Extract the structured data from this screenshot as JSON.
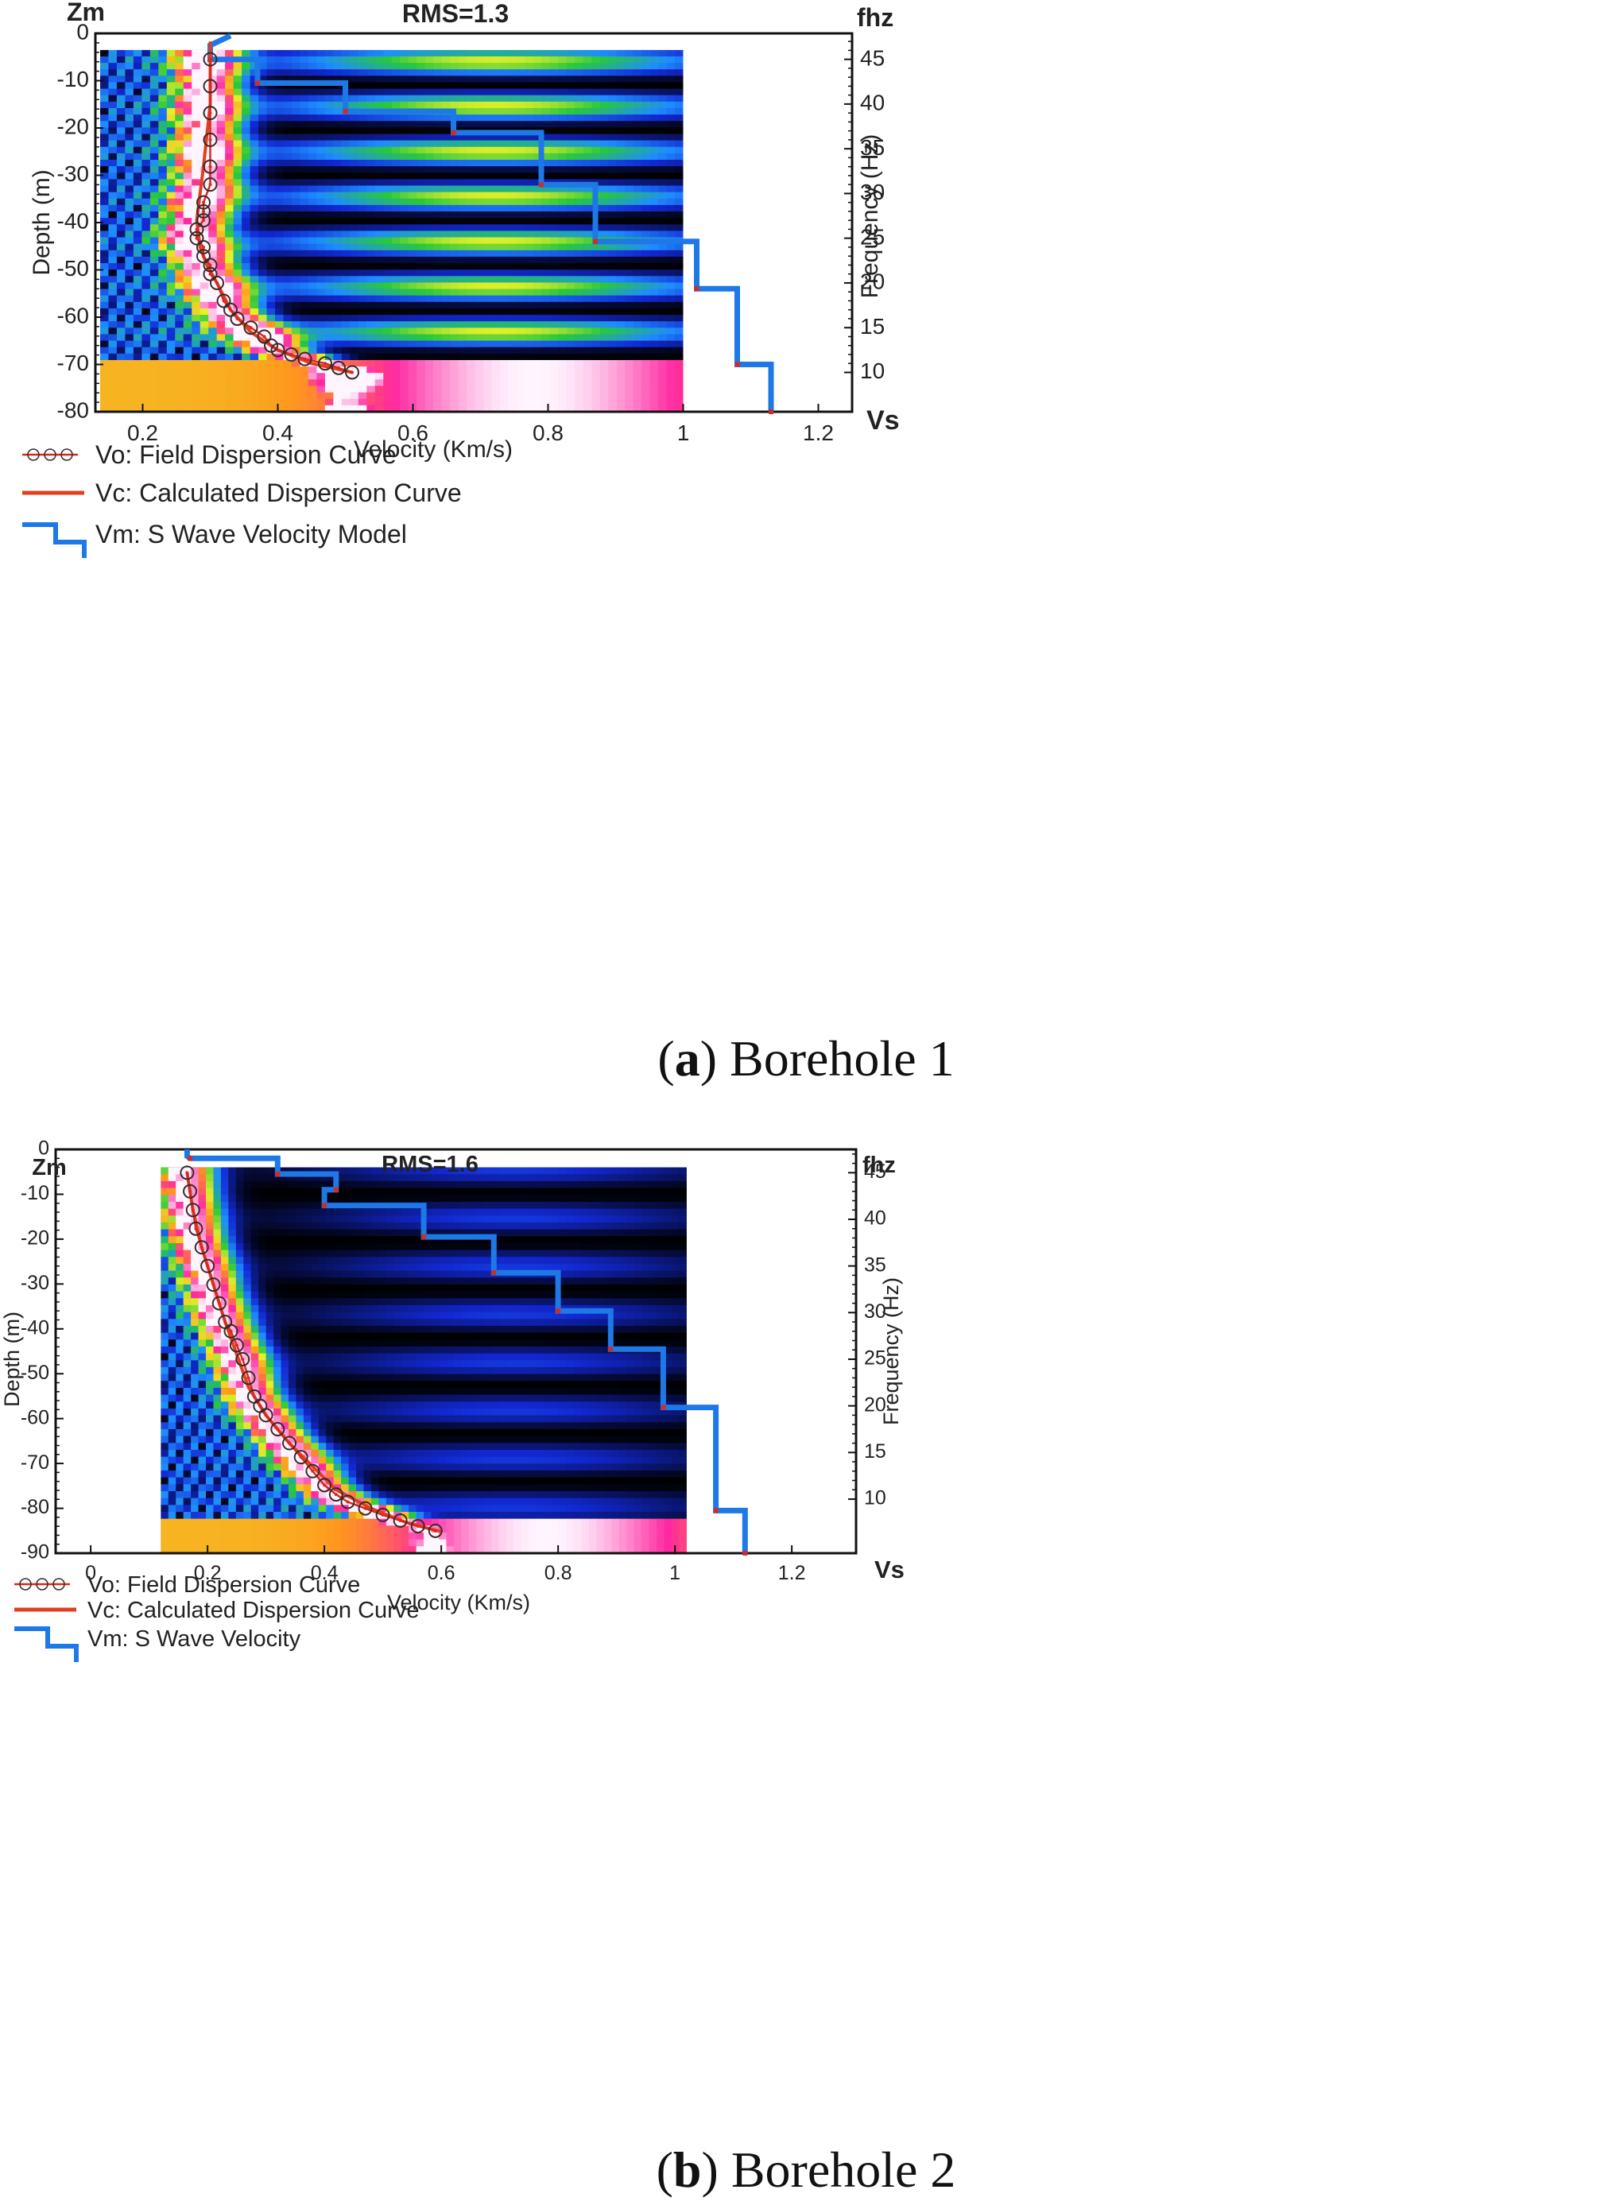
{
  "charts": [
    {
      "id": "a",
      "title": "RMS=1.3",
      "left_axis_unit": "Zm",
      "right_axis_unit": "fhz",
      "x_axis_unit": "Vs",
      "ylabel_left": "Depth (m)",
      "ylabel_right": "Frequency (Hz)",
      "xlabel": "Velocity (Km/s)",
      "caption_letter": "a",
      "caption_text": "Borehole 1",
      "legend": [
        {
          "key": "vo",
          "label": "Vo: Field Dispersion Curve"
        },
        {
          "key": "vc",
          "label": "Vc: Calculated Dispersion Curve"
        },
        {
          "key": "vm",
          "label": "Vm: S Wave Velocity Model"
        }
      ]
    },
    {
      "id": "b",
      "title": "RMS=1.6",
      "left_axis_unit": "Zm",
      "right_axis_unit": "fhz",
      "x_axis_unit": "Vs",
      "ylabel_left": "Depth (m)",
      "ylabel_right": "Frequency (Hz)",
      "xlabel": "Velocity (Km/s)",
      "caption_letter": "b",
      "caption_text": "Borehole 2",
      "legend": [
        {
          "key": "vo",
          "label": "Vo: Field Dispersion Curve"
        },
        {
          "key": "vc",
          "label": "Vc: Calculated Dispersion Curve"
        },
        {
          "key": "vm",
          "label": "Vm: S Wave Velocity"
        }
      ]
    }
  ],
  "colors": {
    "field_curve": "#d62a1e",
    "calc_curve": "#e0401f",
    "model": "#1e78e6",
    "marker": "#3a2a2a"
  },
  "chart_data": [
    {
      "type": "line",
      "title": "RMS=1.3",
      "xlabel": "Velocity (Km/s)",
      "ylabel": "Depth (m)",
      "ylabel_right": "Frequency (Hz)",
      "xlim": [
        0.13,
        1.25
      ],
      "ylim": [
        -80,
        0
      ],
      "freq_lim": [
        5.6,
        47.9
      ],
      "x_ticks": [
        0.2,
        0.4,
        0.6,
        0.8,
        1,
        1.2
      ],
      "y_ticks": [
        0,
        -10,
        -20,
        -30,
        -40,
        -50,
        -60,
        -70,
        -80
      ],
      "freq_ticks": [
        10,
        15,
        20,
        25,
        30,
        35,
        40,
        45
      ],
      "grid": false,
      "legend_position": "bottom-left",
      "background": "dispersion energy spectrum (heatmap)",
      "series": [
        {
          "name": "Vo: Field Dispersion Curve",
          "kind": "markers+line",
          "velocity": [
            0.3,
            0.3,
            0.3,
            0.3,
            0.3,
            0.3,
            0.29,
            0.29,
            0.29,
            0.28,
            0.28,
            0.29,
            0.29,
            0.3,
            0.3,
            0.31,
            0.32,
            0.33,
            0.34,
            0.36,
            0.38,
            0.39,
            0.4,
            0.42,
            0.44,
            0.47,
            0.49,
            0.51
          ],
          "frequency": [
            45,
            42,
            39,
            36,
            33,
            31,
            29,
            28,
            27,
            26,
            25,
            24,
            23,
            22,
            21,
            20,
            18,
            17,
            16,
            15,
            14,
            13,
            12.5,
            12,
            11.5,
            11,
            10.5,
            10
          ]
        },
        {
          "name": "Vc: Calculated Dispersion Curve",
          "kind": "line",
          "velocity": [
            0.3,
            0.3,
            0.29,
            0.28,
            0.285,
            0.295,
            0.31,
            0.33,
            0.36,
            0.4,
            0.45,
            0.51
          ],
          "frequency": [
            47,
            40,
            33,
            27,
            24,
            22,
            20,
            17,
            14.5,
            12.5,
            11,
            10
          ]
        },
        {
          "name": "Vm: S Wave Velocity Model",
          "kind": "step",
          "velocity": [
            0.33,
            0.3,
            0.3,
            0.37,
            0.37,
            0.5,
            0.5,
            0.66,
            0.66,
            0.79,
            0.79,
            0.87,
            0.87,
            1.02,
            1.02,
            1.08,
            1.08,
            1.13,
            1.13
          ],
          "depth": [
            -0.5,
            -2.5,
            -5.5,
            -5.5,
            -10.5,
            -10.5,
            -16.5,
            -16.5,
            -21,
            -21,
            -32,
            -32,
            -44,
            -44,
            -54,
            -54,
            -70,
            -70,
            -80
          ]
        }
      ]
    },
    {
      "type": "line",
      "title": "RMS=1.6",
      "xlabel": "Velocity (Km/s)",
      "ylabel": "Depth (m)",
      "ylabel_right": "Frequency (Hz)",
      "xlim": [
        -0.06,
        1.31
      ],
      "ylim": [
        -90,
        0
      ],
      "freq_lim": [
        4.2,
        47.5
      ],
      "x_ticks": [
        0,
        0.2,
        0.4,
        0.6,
        0.8,
        1,
        1.2
      ],
      "y_ticks": [
        0,
        -10,
        -20,
        -30,
        -40,
        -50,
        -60,
        -70,
        -80,
        -90
      ],
      "freq_ticks": [
        10,
        15,
        20,
        25,
        30,
        35,
        40,
        45
      ],
      "grid": false,
      "legend_position": "bottom-left",
      "background": "dispersion energy spectrum (heatmap)",
      "series": [
        {
          "name": "Vo: Field Dispersion Curve",
          "kind": "markers+line",
          "velocity": [
            0.165,
            0.17,
            0.175,
            0.18,
            0.19,
            0.2,
            0.21,
            0.22,
            0.23,
            0.24,
            0.25,
            0.26,
            0.27,
            0.28,
            0.29,
            0.3,
            0.32,
            0.34,
            0.36,
            0.38,
            0.4,
            0.42,
            0.44,
            0.47,
            0.5,
            0.53,
            0.56,
            0.59
          ],
          "frequency": [
            45,
            43,
            41,
            39,
            37,
            35,
            33,
            31,
            29,
            28,
            26.5,
            25,
            23,
            21,
            20,
            19,
            17.5,
            16,
            14.5,
            13,
            11.5,
            10.5,
            9.7,
            9,
            8.3,
            7.7,
            7.1,
            6.6
          ]
        },
        {
          "name": "Vc: Calculated Dispersion Curve",
          "kind": "line",
          "velocity": [
            0.165,
            0.175,
            0.19,
            0.21,
            0.23,
            0.25,
            0.27,
            0.3,
            0.34,
            0.38,
            0.42,
            0.48,
            0.54,
            0.6
          ],
          "frequency": [
            45,
            41,
            37,
            33,
            29,
            25.5,
            22,
            19,
            16,
            13.5,
            11,
            9,
            7.5,
            6.5
          ]
        },
        {
          "name": "Vm: S Wave Velocity",
          "kind": "step",
          "velocity": [
            0.165,
            0.165,
            0.17,
            0.32,
            0.32,
            0.42,
            0.42,
            0.4,
            0.4,
            0.57,
            0.57,
            0.69,
            0.69,
            0.8,
            0.8,
            0.89,
            0.89,
            0.98,
            0.98,
            1.07,
            1.07,
            1.12,
            1.12
          ],
          "depth": [
            0,
            -1.5,
            -2,
            -2,
            -5.5,
            -5.5,
            -9,
            -9,
            -12.5,
            -12.5,
            -19.5,
            -19.5,
            -27.5,
            -27.5,
            -36,
            -36,
            -44.5,
            -44.5,
            -57.5,
            -57.5,
            -80.5,
            -80.5,
            -90
          ]
        }
      ]
    }
  ]
}
